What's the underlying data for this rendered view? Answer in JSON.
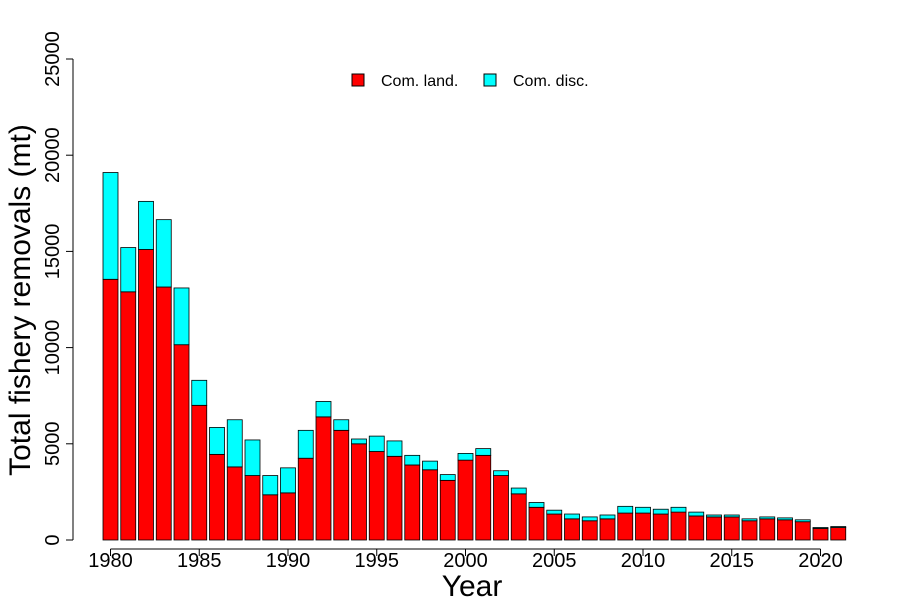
{
  "chart_data": {
    "type": "bar",
    "stacked": true,
    "xlabel": "Year",
    "ylabel": "Total fishery removals (mt)",
    "ylim": [
      0,
      25000
    ],
    "yticks": [
      "0",
      "5000",
      "10000",
      "15000",
      "20000",
      "25000"
    ],
    "xticks": [
      "1980",
      "1985",
      "1990",
      "1995",
      "2000",
      "2005",
      "2010",
      "2015",
      "2020"
    ],
    "legend_position": "top-center",
    "grid": false,
    "categories": [
      1980,
      1981,
      1982,
      1983,
      1984,
      1985,
      1986,
      1987,
      1988,
      1989,
      1990,
      1991,
      1992,
      1993,
      1994,
      1995,
      1996,
      1997,
      1998,
      1999,
      2000,
      2001,
      2002,
      2003,
      2004,
      2005,
      2006,
      2007,
      2008,
      2009,
      2010,
      2011,
      2012,
      2013,
      2014,
      2015,
      2016,
      2017,
      2018,
      2019,
      2020,
      2021
    ],
    "series": [
      {
        "name": "Com. land.",
        "color": "#ff0000",
        "values": [
          13550,
          12900,
          15100,
          13150,
          10150,
          7000,
          4450,
          3800,
          3350,
          2350,
          2450,
          4250,
          6400,
          5700,
          5000,
          4600,
          4350,
          3900,
          3650,
          3100,
          4150,
          4400,
          3350,
          2400,
          1700,
          1350,
          1100,
          1000,
          1100,
          1400,
          1400,
          1350,
          1450,
          1250,
          1200,
          1200,
          1000,
          1100,
          1050,
          950,
          600,
          650
        ]
      },
      {
        "name": "Com. disc.",
        "color": "#00ffff",
        "values": [
          5550,
          2300,
          2500,
          3500,
          2950,
          1300,
          1400,
          2450,
          1850,
          1000,
          1300,
          1450,
          800,
          550,
          250,
          800,
          800,
          500,
          450,
          300,
          350,
          350,
          250,
          300,
          250,
          200,
          250,
          200,
          200,
          350,
          300,
          250,
          250,
          200,
          100,
          100,
          100,
          100,
          100,
          100,
          50,
          50
        ]
      }
    ]
  }
}
